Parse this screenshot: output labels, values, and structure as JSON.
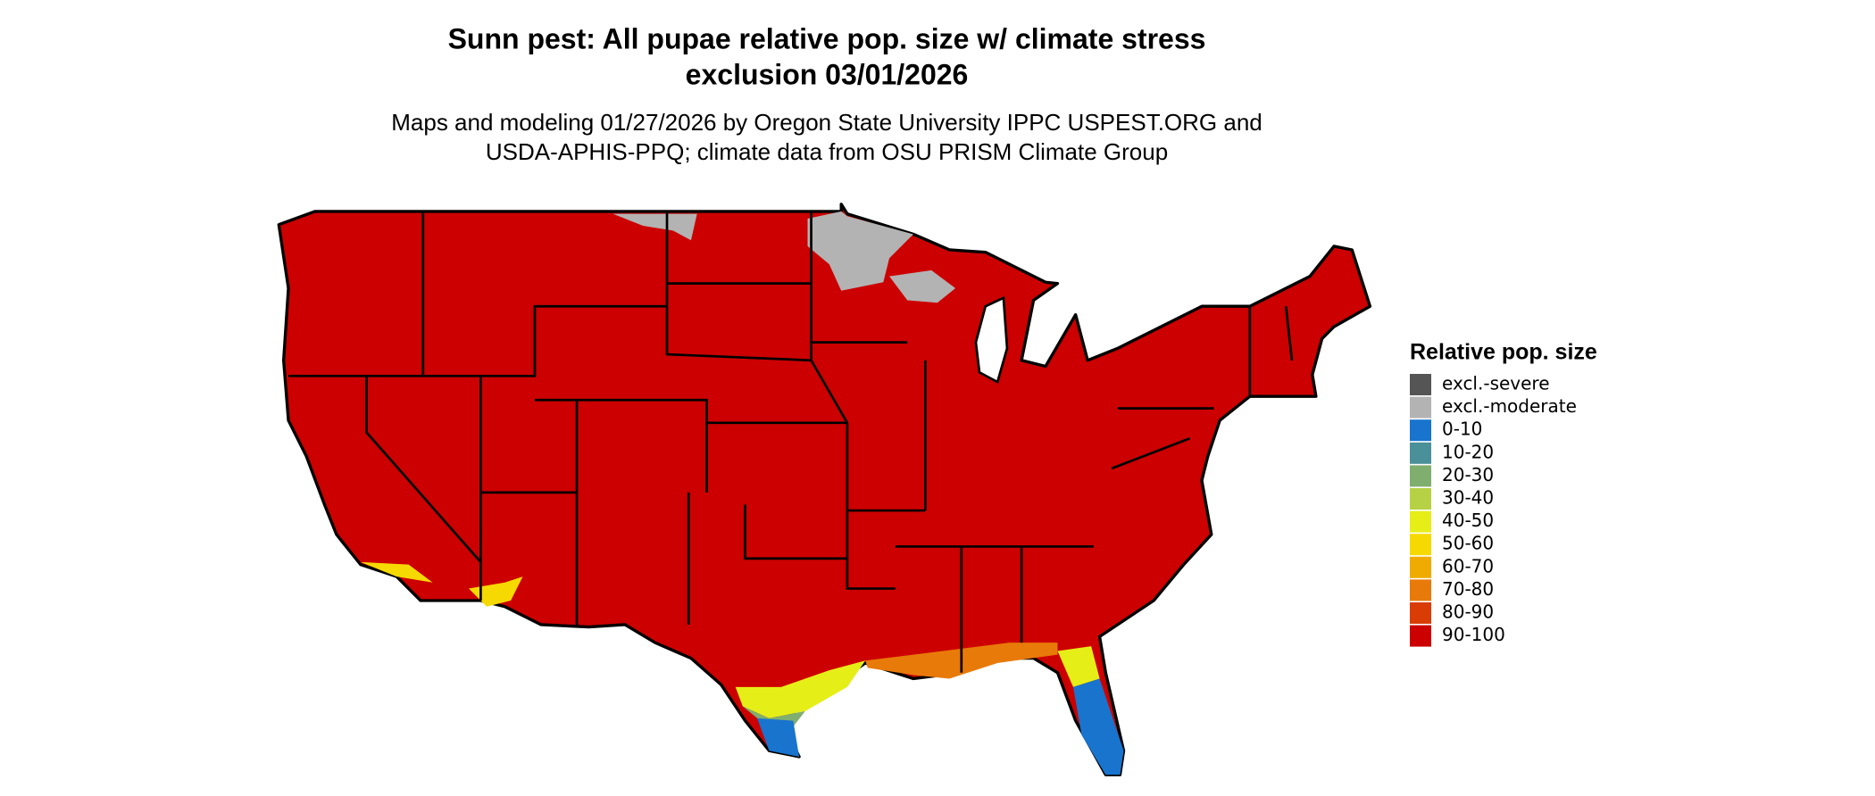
{
  "header": {
    "title_lines": [
      "Sunn pest: All pupae relative pop. size w/ climate stress",
      "exclusion 03/01/2026"
    ],
    "subtitle_lines": [
      "Maps and modeling 01/27/2026 by Oregon State University IPPC USPEST.ORG and",
      "USDA-APHIS-PPQ; climate data from OSU PRISM Climate Group"
    ]
  },
  "legend": {
    "title": "Relative pop. size",
    "items": [
      {
        "label": "excl.-severe",
        "color": "#555555"
      },
      {
        "label": "excl.-moderate",
        "color": "#b3b3b3"
      },
      {
        "label": "0-10",
        "color": "#1874cd"
      },
      {
        "label": "10-20",
        "color": "#4a9099"
      },
      {
        "label": "20-30",
        "color": "#80ae6e"
      },
      {
        "label": "30-40",
        "color": "#b6d144"
      },
      {
        "label": "40-50",
        "color": "#e6ee18"
      },
      {
        "label": "50-60",
        "color": "#f6d900"
      },
      {
        "label": "60-70",
        "color": "#f0ab00"
      },
      {
        "label": "70-80",
        "color": "#e87a0a"
      },
      {
        "label": "80-90",
        "color": "#d93c05"
      },
      {
        "label": "90-100",
        "color": "#cc0000"
      }
    ]
  }
}
